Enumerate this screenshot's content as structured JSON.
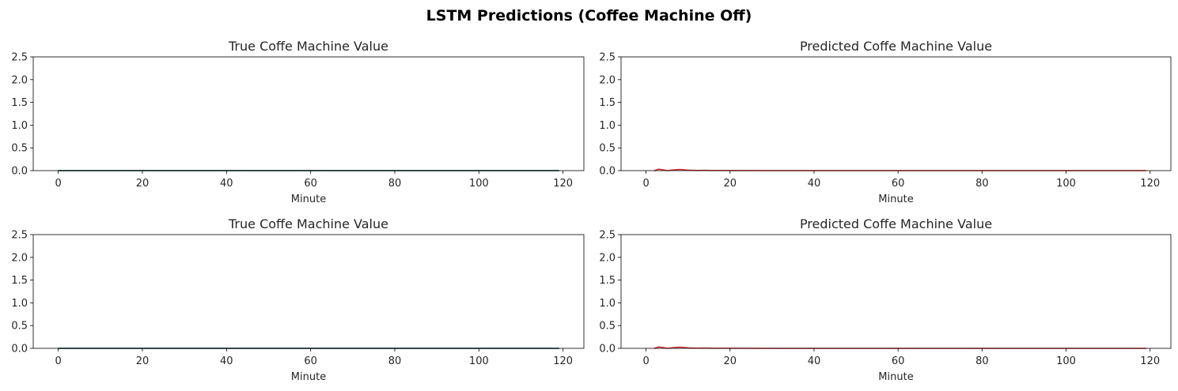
{
  "title": "LSTM Predictions (Coffee Machine Off)",
  "chart_data": [
    {
      "type": "line",
      "title": "True Coffe Machine Value",
      "xlabel": "Minute",
      "ylabel": "",
      "xlim": [
        -5.95,
        124.95
      ],
      "ylim": [
        0,
        2.5
      ],
      "xticks": [
        0,
        20,
        40,
        60,
        80,
        100,
        120
      ],
      "yticks": [
        0.0,
        0.5,
        1.0,
        1.5,
        2.0,
        2.5
      ],
      "series": [
        {
          "color": "#1f77b4",
          "x": [
            0,
            119
          ],
          "y": [
            0,
            0
          ]
        },
        {
          "color": "#2e4d35",
          "x": [
            0,
            119
          ],
          "y": [
            0,
            0
          ]
        }
      ]
    },
    {
      "type": "line",
      "title": "Predicted Coffe Machine Value",
      "xlabel": "Minute",
      "ylabel": "",
      "xlim": [
        -5.95,
        124.95
      ],
      "ylim": [
        0,
        2.5
      ],
      "xticks": [
        0,
        20,
        40,
        60,
        80,
        100,
        120
      ],
      "yticks": [
        0.0,
        0.5,
        1.0,
        1.5,
        2.0,
        2.5
      ],
      "series": [
        {
          "color": "#d62728",
          "x": [
            2,
            3,
            4,
            5,
            6,
            7,
            8,
            9,
            10,
            12,
            14,
            16,
            20,
            30,
            119
          ],
          "y": [
            0.0,
            0.03,
            0.02,
            0.0,
            0.01,
            0.02,
            0.025,
            0.02,
            0.01,
            0.005,
            0.006,
            0.003,
            0.002,
            0.001,
            0.0
          ]
        }
      ]
    },
    {
      "type": "line",
      "title": "True Coffe Machine Value",
      "xlabel": "Minute",
      "ylabel": "",
      "xlim": [
        -5.95,
        124.95
      ],
      "ylim": [
        0,
        2.5
      ],
      "xticks": [
        0,
        20,
        40,
        60,
        80,
        100,
        120
      ],
      "yticks": [
        0.0,
        0.5,
        1.0,
        1.5,
        2.0,
        2.5
      ],
      "series": [
        {
          "color": "#1f77b4",
          "x": [
            0,
            119
          ],
          "y": [
            0,
            0
          ]
        },
        {
          "color": "#2e4d35",
          "x": [
            0,
            119
          ],
          "y": [
            0,
            0
          ]
        }
      ]
    },
    {
      "type": "line",
      "title": "Predicted Coffe Machine Value",
      "xlabel": "Minute",
      "ylabel": "",
      "xlim": [
        -5.95,
        124.95
      ],
      "ylim": [
        0,
        2.5
      ],
      "xticks": [
        0,
        20,
        40,
        60,
        80,
        100,
        120
      ],
      "yticks": [
        0.0,
        0.5,
        1.0,
        1.5,
        2.0,
        2.5
      ],
      "series": [
        {
          "color": "#d62728",
          "x": [
            2,
            3,
            4,
            5,
            6,
            7,
            8,
            9,
            10,
            12,
            14,
            16,
            20,
            30,
            119
          ],
          "y": [
            0.0,
            0.03,
            0.02,
            0.0,
            0.01,
            0.02,
            0.025,
            0.02,
            0.01,
            0.005,
            0.006,
            0.003,
            0.002,
            0.001,
            0.0
          ]
        }
      ]
    }
  ]
}
